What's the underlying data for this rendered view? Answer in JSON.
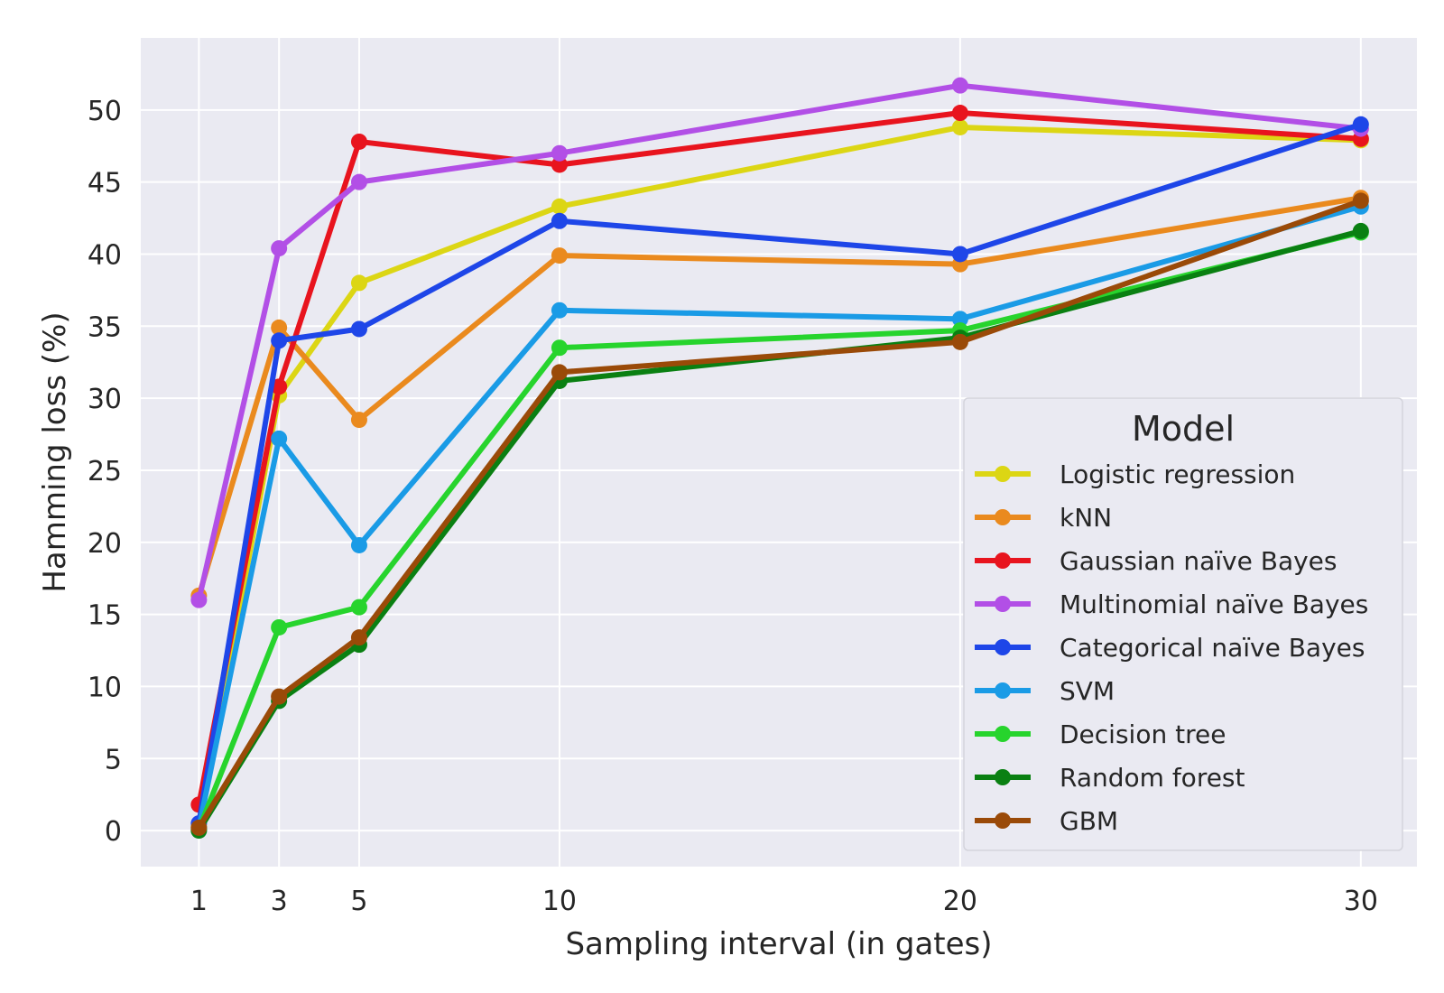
{
  "chart_data": {
    "type": "line",
    "title": "",
    "xlabel": "Sampling interval (in gates)",
    "ylabel": "Hamming loss (%)",
    "x": [
      1,
      3,
      5,
      10,
      20,
      30
    ],
    "xticks": [
      "1",
      "3",
      "5",
      "10",
      "20",
      "30"
    ],
    "yticks": [
      "0",
      "5",
      "10",
      "15",
      "20",
      "25",
      "30",
      "35",
      "40",
      "45",
      "50"
    ],
    "xlim": [
      -0.45,
      31.4
    ],
    "ylim": [
      -2.5,
      55
    ],
    "grid": true,
    "background": "#eaeaf2",
    "legend": {
      "title": "Model",
      "position": "lower-right"
    },
    "series": [
      {
        "name": "Logistic regression",
        "color": "#dcd614",
        "values": [
          0.3,
          30.2,
          38.0,
          43.3,
          48.8,
          47.9
        ]
      },
      {
        "name": "kNN",
        "color": "#ea8a1e",
        "values": [
          16.3,
          34.9,
          28.5,
          39.9,
          39.3,
          43.9
        ]
      },
      {
        "name": "Gaussian naïve Bayes",
        "color": "#e8141e",
        "values": [
          1.8,
          30.8,
          47.8,
          46.2,
          49.8,
          48.0
        ]
      },
      {
        "name": "Multinomial naïve Bayes",
        "color": "#b24fe6",
        "values": [
          16.0,
          40.4,
          45.0,
          47.0,
          51.7,
          48.7
        ]
      },
      {
        "name": "Categorical naïve Bayes",
        "color": "#1e46e8",
        "values": [
          0.5,
          34.0,
          34.8,
          42.3,
          40.0,
          49.0
        ]
      },
      {
        "name": "SVM",
        "color": "#1a9be6",
        "values": [
          0.2,
          27.2,
          19.8,
          36.1,
          35.5,
          43.3
        ]
      },
      {
        "name": "Decision tree",
        "color": "#27d42d",
        "values": [
          0.1,
          14.1,
          15.5,
          33.5,
          34.7,
          41.5
        ]
      },
      {
        "name": "Random forest",
        "color": "#0a8012",
        "values": [
          0.0,
          9.0,
          12.9,
          31.2,
          34.2,
          41.6
        ]
      },
      {
        "name": "GBM",
        "color": "#9a4a08",
        "values": [
          0.2,
          9.3,
          13.4,
          31.8,
          33.9,
          43.7
        ]
      }
    ]
  }
}
